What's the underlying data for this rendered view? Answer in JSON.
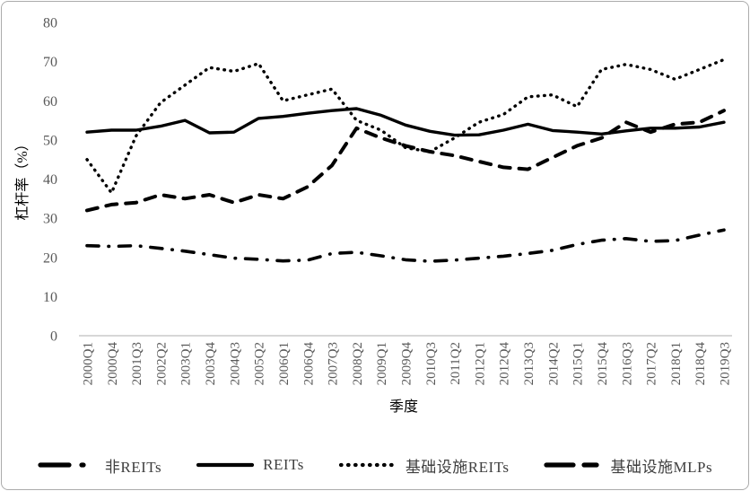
{
  "page": {
    "background": "#ffffff",
    "frame_border_color": "#ababab"
  },
  "chart_data": {
    "type": "line",
    "title": "",
    "xlabel": "季度",
    "ylabel": "杠杆率（%）",
    "ylim": [
      0,
      80
    ],
    "yticks": [
      0,
      10,
      20,
      30,
      40,
      50,
      60,
      70,
      80
    ],
    "grid": false,
    "legend_position": "bottom",
    "series_color": "#000000",
    "axis_text_color": "#595959",
    "axis_line_color": "#bfbfbf",
    "legend_text_color": "#3f3f3f",
    "categories": [
      "2000Q1",
      "2000Q4",
      "2001Q3",
      "2002Q2",
      "2003Q1",
      "2003Q4",
      "2004Q3",
      "2005Q2",
      "2006Q1",
      "2006Q4",
      "2007Q3",
      "2008Q2",
      "2009Q1",
      "2009Q4",
      "2010Q3",
      "2011Q2",
      "2012Q1",
      "2012Q4",
      "2013Q3",
      "2014Q2",
      "2015Q1",
      "2015Q4",
      "2016Q3",
      "2017Q2",
      "2018Q1",
      "2018Q4",
      "2019Q3"
    ],
    "series": [
      {
        "name": "非REITs",
        "line_style": "dash-dot",
        "values": [
          23.0,
          22.8,
          23.0,
          22.3,
          21.6,
          20.7,
          19.8,
          19.5,
          19.1,
          19.3,
          21.0,
          21.3,
          20.4,
          19.4,
          19.0,
          19.3,
          19.8,
          20.3,
          21.0,
          21.8,
          23.3,
          24.4,
          24.8,
          24.1,
          24.3,
          25.7,
          27.0
        ]
      },
      {
        "name": "REITs",
        "line_style": "solid",
        "values": [
          52.0,
          52.5,
          52.5,
          53.5,
          55.0,
          51.8,
          52.0,
          55.5,
          56.0,
          56.8,
          57.5,
          58.0,
          56.3,
          53.8,
          52.2,
          51.2,
          51.3,
          52.5,
          54.0,
          52.4,
          52.0,
          51.5,
          52.3,
          53.0,
          53.0,
          53.3,
          54.5
        ]
      },
      {
        "name": "基础设施REITs",
        "line_style": "dotted",
        "values": [
          45.0,
          36.5,
          51.0,
          59.5,
          64.0,
          68.5,
          67.5,
          69.5,
          60.0,
          61.5,
          63.0,
          55.0,
          52.5,
          48.0,
          47.0,
          50.5,
          54.5,
          56.5,
          61.0,
          61.5,
          58.5,
          68.0,
          69.3,
          68.0,
          65.5,
          68.0,
          70.5
        ]
      },
      {
        "name": "基础设施MLPs",
        "line_style": "dashed",
        "values": [
          32.0,
          33.5,
          34.0,
          36.0,
          35.0,
          36.0,
          34.0,
          36.0,
          35.0,
          38.0,
          43.5,
          53.0,
          50.5,
          48.5,
          47.0,
          46.0,
          44.5,
          43.0,
          42.5,
          45.5,
          48.5,
          50.5,
          54.5,
          52.0,
          54.0,
          54.5,
          57.5
        ]
      }
    ]
  }
}
